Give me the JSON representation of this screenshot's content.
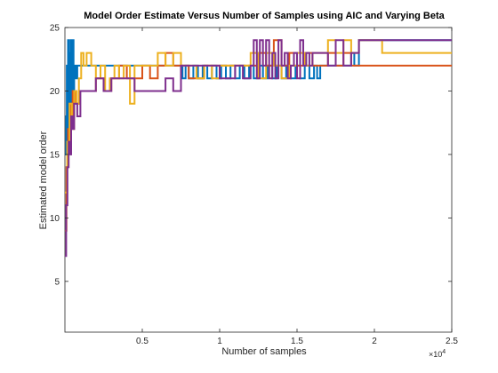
{
  "chart_data": {
    "type": "line",
    "title": "Model Order Estimate Versus Number of Samples using AIC and Varying Beta",
    "xlabel": "Number of samples",
    "ylabel": "Estimated model order",
    "x_scale_label": "×10",
    "x_scale_exponent": "4",
    "xlim": [
      0,
      25000
    ],
    "ylim": [
      1,
      25
    ],
    "xticks": [
      {
        "value": 5000,
        "label": "0.5"
      },
      {
        "value": 10000,
        "label": "1"
      },
      {
        "value": 15000,
        "label": "1.5"
      },
      {
        "value": 20000,
        "label": "2"
      },
      {
        "value": 25000,
        "label": "2.5"
      }
    ],
    "yticks": [
      {
        "value": 5,
        "label": "5"
      },
      {
        "value": 10,
        "label": "10"
      },
      {
        "value": 15,
        "label": "15"
      },
      {
        "value": 20,
        "label": "20"
      },
      {
        "value": 25,
        "label": "25"
      }
    ],
    "grid": false,
    "series": [
      {
        "color": "#0072BD",
        "points": [
          [
            0,
            15
          ],
          [
            80,
            18
          ],
          [
            120,
            22
          ],
          [
            160,
            16
          ],
          [
            200,
            24
          ],
          [
            240,
            18
          ],
          [
            280,
            23
          ],
          [
            320,
            17
          ],
          [
            360,
            24
          ],
          [
            400,
            19
          ],
          [
            440,
            22
          ],
          [
            480,
            18
          ],
          [
            520,
            24
          ],
          [
            560,
            20
          ],
          [
            600,
            22
          ],
          [
            700,
            21
          ],
          [
            800,
            22
          ],
          [
            1500,
            22
          ],
          [
            3000,
            22
          ],
          [
            5000,
            22
          ],
          [
            7000,
            22
          ],
          [
            7600,
            21
          ],
          [
            7800,
            22
          ],
          [
            8000,
            21
          ],
          [
            8300,
            22
          ],
          [
            8600,
            21
          ],
          [
            8900,
            22
          ],
          [
            9200,
            21
          ],
          [
            9500,
            22
          ],
          [
            9800,
            21
          ],
          [
            10100,
            22
          ],
          [
            10400,
            21
          ],
          [
            10700,
            22
          ],
          [
            11000,
            21
          ],
          [
            11300,
            22
          ],
          [
            11600,
            21
          ],
          [
            11900,
            22
          ],
          [
            12200,
            21
          ],
          [
            12500,
            22
          ],
          [
            12800,
            21
          ],
          [
            13100,
            22
          ],
          [
            13400,
            21
          ],
          [
            13700,
            22
          ],
          [
            14000,
            21
          ],
          [
            14300,
            22
          ],
          [
            14600,
            21
          ],
          [
            14900,
            22
          ],
          [
            15200,
            21
          ],
          [
            15500,
            22
          ],
          [
            15800,
            21
          ],
          [
            16100,
            22
          ],
          [
            16300,
            21
          ],
          [
            16500,
            22
          ],
          [
            17000,
            22
          ],
          [
            18400,
            22
          ],
          [
            18500,
            23
          ],
          [
            18700,
            22
          ],
          [
            19000,
            24
          ],
          [
            25000,
            24
          ]
        ]
      },
      {
        "color": "#D95319",
        "points": [
          [
            0,
            9
          ],
          [
            100,
            14
          ],
          [
            200,
            17
          ],
          [
            300,
            19
          ],
          [
            400,
            18
          ],
          [
            500,
            20
          ],
          [
            700,
            19
          ],
          [
            900,
            20
          ],
          [
            1500,
            20
          ],
          [
            2000,
            21
          ],
          [
            2500,
            20
          ],
          [
            3000,
            21
          ],
          [
            3500,
            22
          ],
          [
            4000,
            21
          ],
          [
            5000,
            22
          ],
          [
            5500,
            21
          ],
          [
            6000,
            22
          ],
          [
            6500,
            23
          ],
          [
            7000,
            22
          ],
          [
            8000,
            21
          ],
          [
            9000,
            22
          ],
          [
            11000,
            22
          ],
          [
            12000,
            22
          ],
          [
            12500,
            23
          ],
          [
            13000,
            22
          ],
          [
            13500,
            24
          ],
          [
            14000,
            22
          ],
          [
            14500,
            23
          ],
          [
            15000,
            22
          ],
          [
            15500,
            23
          ],
          [
            16000,
            22
          ],
          [
            16500,
            22
          ],
          [
            17000,
            23
          ],
          [
            17500,
            22
          ],
          [
            18000,
            23
          ],
          [
            18500,
            22
          ],
          [
            25000,
            22
          ]
        ]
      },
      {
        "color": "#EDB120",
        "points": [
          [
            0,
            12
          ],
          [
            150,
            16
          ],
          [
            300,
            19
          ],
          [
            450,
            17
          ],
          [
            600,
            20
          ],
          [
            750,
            19
          ],
          [
            900,
            21
          ],
          [
            1050,
            23
          ],
          [
            1200,
            22
          ],
          [
            1400,
            23
          ],
          [
            1700,
            22
          ],
          [
            2000,
            21
          ],
          [
            2300,
            22
          ],
          [
            2600,
            20
          ],
          [
            2900,
            21
          ],
          [
            3200,
            22
          ],
          [
            3500,
            21
          ],
          [
            3800,
            22
          ],
          [
            4200,
            19
          ],
          [
            4500,
            22
          ],
          [
            5000,
            22
          ],
          [
            6000,
            23
          ],
          [
            6500,
            22
          ],
          [
            7000,
            23
          ],
          [
            7500,
            22
          ],
          [
            8000,
            22
          ],
          [
            8500,
            21
          ],
          [
            9000,
            22
          ],
          [
            9500,
            21
          ],
          [
            10000,
            22
          ],
          [
            11000,
            22
          ],
          [
            12000,
            23
          ],
          [
            12500,
            21
          ],
          [
            13000,
            23
          ],
          [
            13500,
            22
          ],
          [
            14000,
            21
          ],
          [
            14500,
            22
          ],
          [
            15000,
            23
          ],
          [
            15500,
            22
          ],
          [
            16000,
            23
          ],
          [
            16500,
            23
          ],
          [
            17000,
            24
          ],
          [
            17500,
            23
          ],
          [
            18000,
            24
          ],
          [
            18500,
            23
          ],
          [
            19000,
            24
          ],
          [
            20000,
            24
          ],
          [
            20500,
            23
          ],
          [
            25000,
            23
          ]
        ]
      },
      {
        "color": "#7E2F8E",
        "points": [
          [
            0,
            7
          ],
          [
            80,
            11
          ],
          [
            160,
            14
          ],
          [
            240,
            16
          ],
          [
            320,
            15
          ],
          [
            400,
            18
          ],
          [
            500,
            17
          ],
          [
            600,
            19
          ],
          [
            800,
            18
          ],
          [
            1000,
            20
          ],
          [
            1500,
            20
          ],
          [
            2000,
            21
          ],
          [
            2500,
            20
          ],
          [
            3000,
            21
          ],
          [
            4000,
            21
          ],
          [
            4500,
            20
          ],
          [
            5500,
            20
          ],
          [
            6500,
            21
          ],
          [
            7000,
            20
          ],
          [
            7500,
            22
          ],
          [
            8000,
            22
          ],
          [
            9000,
            22
          ],
          [
            10000,
            21
          ],
          [
            11000,
            22
          ],
          [
            11500,
            21
          ],
          [
            12000,
            22
          ],
          [
            12200,
            24
          ],
          [
            12400,
            21
          ],
          [
            12600,
            24
          ],
          [
            12800,
            22
          ],
          [
            13000,
            24
          ],
          [
            13200,
            21
          ],
          [
            13400,
            23
          ],
          [
            13600,
            21
          ],
          [
            13800,
            24
          ],
          [
            14000,
            22
          ],
          [
            14200,
            23
          ],
          [
            14400,
            21
          ],
          [
            14600,
            22
          ],
          [
            14800,
            23
          ],
          [
            15000,
            21
          ],
          [
            15200,
            24
          ],
          [
            15400,
            22
          ],
          [
            15600,
            23
          ],
          [
            15800,
            22
          ],
          [
            16000,
            23
          ],
          [
            16500,
            23
          ],
          [
            17000,
            22
          ],
          [
            17500,
            24
          ],
          [
            18000,
            22
          ],
          [
            18500,
            23
          ],
          [
            19000,
            24
          ],
          [
            25000,
            24
          ]
        ]
      }
    ]
  }
}
